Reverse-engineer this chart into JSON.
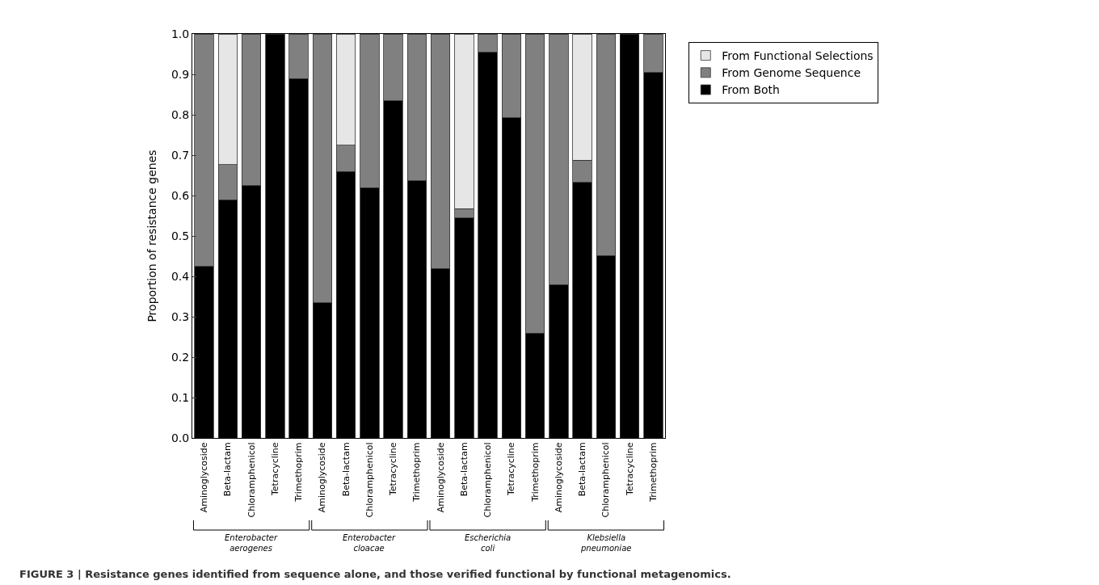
{
  "chart_data": {
    "type": "bar",
    "stacked": true,
    "ylabel": "Proportion of resistance genes",
    "categories": [
      "Aminoglycoside",
      "Beta-lactam",
      "Chloramphenicol",
      "Tetracycline",
      "Trimethoprim",
      "Aminoglycoside",
      "Beta-lactam",
      "Chloramphenicol",
      "Tetracycline",
      "Trimethoprim",
      "Aminoglycoside",
      "Beta-lactam",
      "Chloramphenicol",
      "Tetracycline",
      "Trimethoprim",
      "Aminoglycoside",
      "Beta-lactam",
      "Chloramphenicol",
      "Tetracycline",
      "Trimethoprim"
    ],
    "series": [
      {
        "name": "From Both",
        "color": "#000000",
        "values": [
          0.425,
          0.59,
          0.625,
          1.0,
          0.89,
          0.335,
          0.66,
          0.62,
          0.835,
          0.637,
          0.42,
          0.545,
          0.955,
          0.793,
          0.26,
          0.38,
          0.633,
          0.452,
          1.0,
          0.905
        ]
      },
      {
        "name": "From Genome Sequence",
        "color": "#808080",
        "values": [
          0.575,
          0.087,
          0.375,
          null,
          0.11,
          0.665,
          0.065,
          0.38,
          0.165,
          0.363,
          0.58,
          0.023,
          0.045,
          0.207,
          0.74,
          0.62,
          0.055,
          0.548,
          null,
          0.095
        ]
      },
      {
        "name": "From Functional Selections",
        "color": "#e6e6e6",
        "values": [
          null,
          0.323,
          null,
          null,
          null,
          null,
          0.275,
          null,
          null,
          null,
          null,
          0.432,
          null,
          null,
          null,
          null,
          0.312,
          null,
          null,
          null
        ]
      }
    ],
    "ylim": [
      0,
      1.0
    ],
    "yticks": [
      {
        "value": 0,
        "label": "0.0"
      },
      {
        "value": 0.1,
        "label": "0.1"
      },
      {
        "value": 0.2,
        "label": "0.2"
      },
      {
        "value": 0.3,
        "label": "0.3"
      },
      {
        "value": 0.4,
        "label": "0.4"
      },
      {
        "value": 0.5,
        "label": "0.5"
      },
      {
        "value": 0.6,
        "label": "0.6"
      },
      {
        "value": 0.7,
        "label": "0.7"
      },
      {
        "value": 0.8,
        "label": "0.8"
      },
      {
        "value": 0.9,
        "label": "0.9"
      },
      {
        "value": 1.0,
        "label": "1.0"
      }
    ],
    "annotations": [
      "Enterobacter aerogenes",
      "Enterobacter cloacae",
      "Escherichia coli",
      "Klebsiella pneumoniae",
      "FIGURE 3 | Resistance genes identified from sequence alone, and those verified functional by functional metagenomics."
    ],
    "legend": "top right"
  }
}
